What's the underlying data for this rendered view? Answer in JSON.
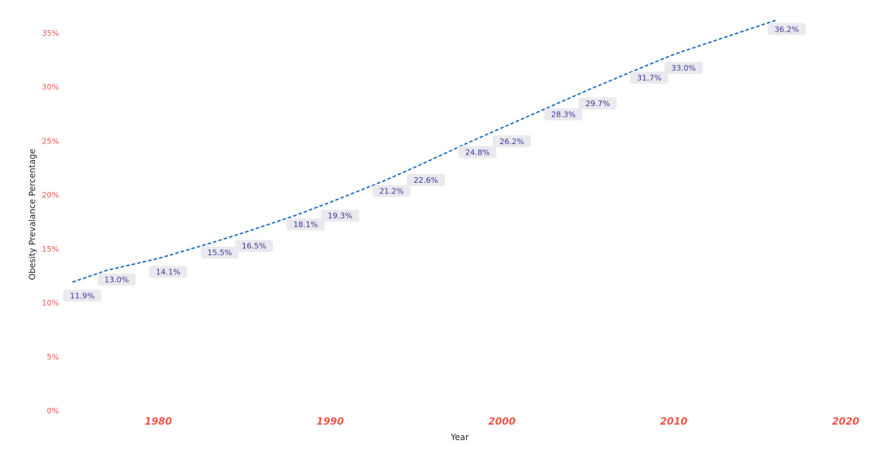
{
  "chart_data": {
    "type": "line",
    "title": "",
    "xlabel": "Year",
    "ylabel": "Obesity Prevalance Percentage",
    "x": [
      1975,
      1977,
      1980,
      1983,
      1985,
      1988,
      1990,
      1993,
      1995,
      1998,
      2000,
      2003,
      2005,
      2008,
      2010,
      2016
    ],
    "series": [
      {
        "values": [
          11.9,
          13.0,
          14.1,
          15.5,
          16.5,
          18.1,
          19.3,
          21.2,
          22.6,
          24.8,
          26.2,
          28.3,
          29.7,
          31.7,
          33.0,
          36.2
        ],
        "labels": [
          "11.9%",
          "13.0%",
          "14.1%",
          "15.5%",
          "16.5%",
          "18.1%",
          "19.3%",
          "21.2%",
          "22.6%",
          "24.8%",
          "26.2%",
          "28.3%",
          "29.7%",
          "31.7%",
          "33.0%",
          "36.2%"
        ],
        "line_style": "dashed"
      }
    ],
    "x_ticks": [
      "1980",
      "1990",
      "2000",
      "2010",
      "2020"
    ],
    "y_ticks": [
      "0%",
      "5%",
      "10%",
      "15%",
      "20%",
      "25%",
      "30%",
      "35%"
    ],
    "xlim": [
      1974,
      2021
    ],
    "ylim": [
      0,
      37
    ],
    "grid": false,
    "colors": {
      "line": "#1f6fbf",
      "tick_labels": "#f0554a",
      "data_label_text": "#3a3a9a",
      "data_label_bg": "#e9e9ee",
      "axis_title": "#252423"
    }
  }
}
